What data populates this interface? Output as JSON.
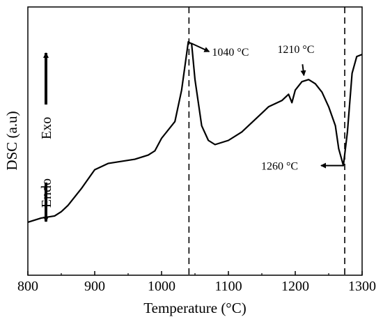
{
  "chart_data": {
    "type": "line",
    "xlabel": "Temperature (°C)",
    "ylabel": "DSC (a.u)",
    "xlim": [
      800,
      1300
    ],
    "x_ticks": [
      "800",
      "900",
      "1000",
      "1100",
      "1200",
      "1300"
    ],
    "y_ticks": [],
    "grid": false,
    "ylim": [
      0,
      100
    ],
    "series": [
      {
        "points": [
          [
            800,
            12
          ],
          [
            820,
            14
          ],
          [
            840,
            15
          ],
          [
            850,
            17
          ],
          [
            860,
            20
          ],
          [
            880,
            28
          ],
          [
            900,
            37
          ],
          [
            920,
            40
          ],
          [
            940,
            41
          ],
          [
            960,
            42
          ],
          [
            980,
            44
          ],
          [
            990,
            46
          ],
          [
            1000,
            52
          ],
          [
            1020,
            60
          ],
          [
            1030,
            75
          ],
          [
            1040,
            98
          ],
          [
            1045,
            97
          ],
          [
            1050,
            80
          ],
          [
            1060,
            58
          ],
          [
            1070,
            51
          ],
          [
            1080,
            49
          ],
          [
            1100,
            51
          ],
          [
            1120,
            55
          ],
          [
            1140,
            61
          ],
          [
            1150,
            64
          ],
          [
            1160,
            67
          ],
          [
            1180,
            70
          ],
          [
            1190,
            73
          ],
          [
            1195,
            69
          ],
          [
            1200,
            75
          ],
          [
            1210,
            79
          ],
          [
            1220,
            80
          ],
          [
            1230,
            78
          ],
          [
            1240,
            74
          ],
          [
            1250,
            67
          ],
          [
            1260,
            58
          ],
          [
            1265,
            47
          ],
          [
            1272,
            39
          ],
          [
            1278,
            55
          ],
          [
            1285,
            83
          ],
          [
            1292,
            91
          ],
          [
            1300,
            92
          ]
        ]
      }
    ],
    "vlines": [
      1041,
      1274
    ],
    "annotations": [
      {
        "text": "1040 °C",
        "x": 1040,
        "y": 98
      },
      {
        "text": "1210 °C",
        "x": 1215,
        "y": 80
      },
      {
        "text": "1260 °C",
        "x": 1274,
        "y": 39
      }
    ],
    "side_labels": {
      "exo": "Exo",
      "endo": "Endo"
    }
  }
}
